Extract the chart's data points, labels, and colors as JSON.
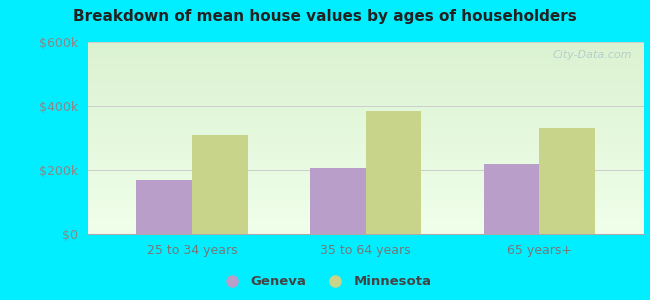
{
  "title": "Breakdown of mean house values by ages of householders",
  "categories": [
    "25 to 34 years",
    "35 to 64 years",
    "65 years+"
  ],
  "geneva_values": [
    170000,
    205000,
    220000
  ],
  "minnesota_values": [
    310000,
    385000,
    330000
  ],
  "geneva_color": "#b89ec8",
  "minnesota_color": "#c8d48a",
  "ylim": [
    0,
    600000
  ],
  "yticks": [
    0,
    200000,
    400000,
    600000
  ],
  "ytick_labels": [
    "$0",
    "$200k",
    "$400k",
    "$600k"
  ],
  "background_outer": "#00eeff",
  "watermark": "City-Data.com",
  "legend_labels": [
    "Geneva",
    "Minnesota"
  ],
  "bar_width": 0.32
}
